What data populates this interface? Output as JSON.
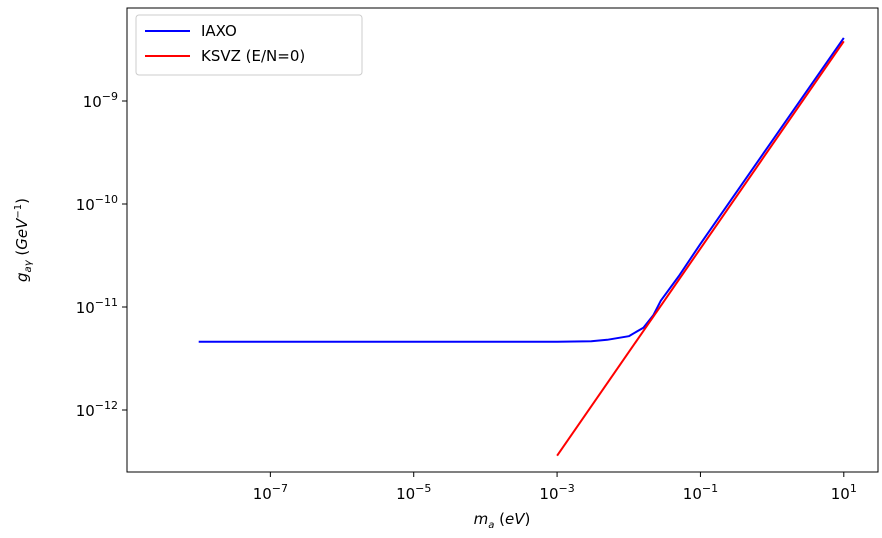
{
  "chart_data": {
    "type": "line",
    "xscale": "log",
    "yscale": "log",
    "xlabel": "m_a (eV)",
    "ylabel": "g_aγ (GeV^-1)",
    "xlim": [
      1e-09,
      30
    ],
    "ylim": [
      2.5e-13,
      8e-09
    ],
    "x_ticks": [
      1e-07,
      1e-05,
      0.001,
      0.1,
      10
    ],
    "x_tick_labels": [
      {
        "base": "10",
        "exp": "−7"
      },
      {
        "base": "10",
        "exp": "−5"
      },
      {
        "base": "10",
        "exp": "−3"
      },
      {
        "base": "10",
        "exp": "−1"
      },
      {
        "base": "10",
        "exp": "1"
      }
    ],
    "y_ticks": [
      1e-12,
      1e-11,
      1e-10,
      1e-09
    ],
    "y_tick_labels": [
      {
        "base": "10",
        "exp": "−12"
      },
      {
        "base": "10",
        "exp": "−11"
      },
      {
        "base": "10",
        "exp": "−10"
      },
      {
        "base": "10",
        "exp": "−9"
      }
    ],
    "legend": {
      "position": "upper left"
    },
    "series": [
      {
        "name": "IAXO",
        "color": "#0000ff",
        "points": [
          [
            1e-08,
            4.6e-12
          ],
          [
            1e-07,
            4.6e-12
          ],
          [
            1e-06,
            4.6e-12
          ],
          [
            1e-05,
            4.6e-12
          ],
          [
            0.0001,
            4.6e-12
          ],
          [
            0.001,
            4.6e-12
          ],
          [
            0.003,
            4.65e-12
          ],
          [
            0.005,
            4.8e-12
          ],
          [
            0.01,
            5.2e-12
          ],
          [
            0.016,
            6.3e-12
          ],
          [
            0.022,
            8.3e-12
          ],
          [
            0.028,
            1.15e-11
          ],
          [
            0.05,
            2e-11
          ],
          [
            0.1,
            4.1e-11
          ],
          [
            1,
            4.1e-10
          ],
          [
            10,
            4.1e-09
          ]
        ]
      },
      {
        "name": "KSVZ (E/N=0)",
        "color": "#ff0000",
        "points": [
          [
            0.001,
            3.6e-13
          ],
          [
            10,
            3.8e-09
          ]
        ]
      }
    ]
  }
}
